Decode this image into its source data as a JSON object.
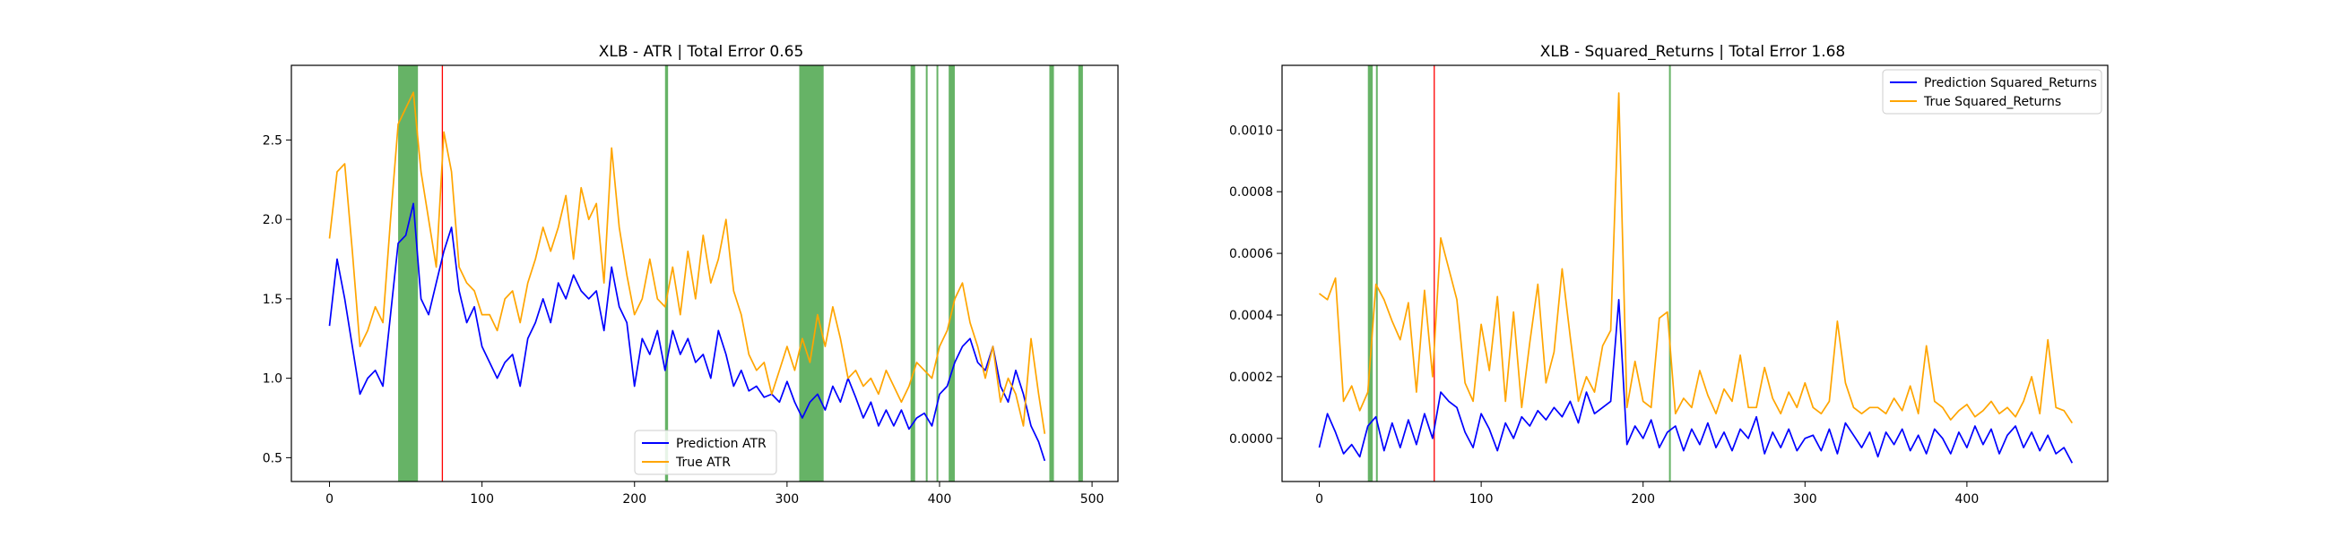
{
  "chart_data": [
    {
      "type": "line",
      "title": "XLB - ATR | Total Error 0.65",
      "xlabel": "",
      "ylabel": "",
      "xlim": [
        -25,
        517
      ],
      "ylim": [
        0.35,
        2.97
      ],
      "x_ticks": [
        0,
        100,
        200,
        300,
        400,
        500
      ],
      "y_ticks": [
        0.5,
        1.0,
        1.5,
        2.0,
        2.5
      ],
      "x_tick_labels": [
        "0",
        "100",
        "200",
        "300",
        "400",
        "500"
      ],
      "y_tick_labels": [
        "0.5",
        "1.0",
        "1.5",
        "2.0",
        "2.5"
      ],
      "legend_position": "lower-center",
      "colors": {
        "prediction": "#0000ff",
        "true": "#ffa500",
        "green_band": "#008000",
        "red_line": "#ff0000"
      },
      "series": [
        {
          "name": "Prediction ATR",
          "color": "#0000ff",
          "x": [
            0,
            5,
            10,
            15,
            20,
            25,
            30,
            35,
            40,
            45,
            50,
            55,
            60,
            65,
            70,
            75,
            80,
            85,
            90,
            95,
            100,
            105,
            110,
            115,
            120,
            125,
            130,
            135,
            140,
            145,
            150,
            155,
            160,
            165,
            170,
            175,
            180,
            185,
            190,
            195,
            200,
            205,
            210,
            215,
            220,
            225,
            230,
            235,
            240,
            245,
            250,
            255,
            260,
            265,
            270,
            275,
            280,
            285,
            290,
            295,
            300,
            305,
            310,
            315,
            320,
            325,
            330,
            335,
            340,
            345,
            350,
            355,
            360,
            365,
            370,
            375,
            380,
            385,
            390,
            395,
            400,
            405,
            410,
            415,
            420,
            425,
            430,
            435,
            440,
            445,
            450,
            455,
            460,
            465,
            469
          ],
          "values": [
            1.33,
            1.75,
            1.5,
            1.2,
            0.9,
            1.0,
            1.05,
            0.95,
            1.4,
            1.85,
            1.9,
            2.1,
            1.5,
            1.4,
            1.6,
            1.8,
            1.95,
            1.55,
            1.35,
            1.45,
            1.2,
            1.1,
            1.0,
            1.1,
            1.15,
            0.95,
            1.25,
            1.35,
            1.5,
            1.35,
            1.6,
            1.5,
            1.65,
            1.55,
            1.5,
            1.55,
            1.3,
            1.7,
            1.45,
            1.35,
            0.95,
            1.25,
            1.15,
            1.3,
            1.05,
            1.3,
            1.15,
            1.25,
            1.1,
            1.15,
            1.0,
            1.3,
            1.15,
            0.95,
            1.05,
            0.92,
            0.95,
            0.88,
            0.9,
            0.85,
            0.98,
            0.85,
            0.75,
            0.85,
            0.9,
            0.8,
            0.95,
            0.85,
            1.0,
            0.88,
            0.75,
            0.85,
            0.7,
            0.8,
            0.7,
            0.8,
            0.68,
            0.75,
            0.78,
            0.7,
            0.9,
            0.95,
            1.1,
            1.2,
            1.25,
            1.1,
            1.05,
            1.2,
            0.95,
            0.85,
            1.05,
            0.9,
            0.7,
            0.6,
            0.48
          ]
        },
        {
          "name": "True ATR",
          "color": "#ffa500",
          "x": [
            0,
            5,
            10,
            15,
            20,
            25,
            30,
            35,
            40,
            45,
            50,
            55,
            60,
            65,
            70,
            75,
            80,
            85,
            90,
            95,
            100,
            105,
            110,
            115,
            120,
            125,
            130,
            135,
            140,
            145,
            150,
            155,
            160,
            165,
            170,
            175,
            180,
            185,
            190,
            195,
            200,
            205,
            210,
            215,
            220,
            225,
            230,
            235,
            240,
            245,
            250,
            255,
            260,
            265,
            270,
            275,
            280,
            285,
            290,
            295,
            300,
            305,
            310,
            315,
            320,
            325,
            330,
            335,
            340,
            345,
            350,
            355,
            360,
            365,
            370,
            375,
            380,
            385,
            390,
            395,
            400,
            405,
            410,
            415,
            420,
            425,
            430,
            435,
            440,
            445,
            450,
            455,
            460,
            465,
            469
          ],
          "values": [
            1.88,
            2.3,
            2.35,
            1.8,
            1.2,
            1.3,
            1.45,
            1.35,
            2.0,
            2.6,
            2.7,
            2.8,
            2.3,
            2.0,
            1.7,
            2.55,
            2.3,
            1.7,
            1.6,
            1.55,
            1.4,
            1.4,
            1.3,
            1.5,
            1.55,
            1.35,
            1.6,
            1.75,
            1.95,
            1.8,
            1.95,
            2.15,
            1.75,
            2.2,
            2.0,
            2.1,
            1.6,
            2.45,
            1.95,
            1.65,
            1.4,
            1.5,
            1.75,
            1.5,
            1.45,
            1.7,
            1.4,
            1.8,
            1.5,
            1.9,
            1.6,
            1.75,
            2.0,
            1.55,
            1.4,
            1.15,
            1.05,
            1.1,
            0.9,
            1.05,
            1.2,
            1.05,
            1.25,
            1.1,
            1.4,
            1.2,
            1.45,
            1.25,
            1.0,
            1.05,
            0.95,
            1.0,
            0.9,
            1.05,
            0.95,
            0.85,
            0.95,
            1.1,
            1.05,
            1.0,
            1.2,
            1.3,
            1.5,
            1.6,
            1.35,
            1.2,
            1.0,
            1.2,
            0.85,
            1.0,
            0.9,
            0.7,
            1.25,
            0.9,
            0.65
          ]
        }
      ],
      "green_bands": [
        [
          45,
          58
        ],
        [
          220,
          222
        ],
        [
          308,
          324
        ],
        [
          381,
          384
        ],
        [
          391,
          392
        ],
        [
          398,
          399
        ],
        [
          406,
          410
        ],
        [
          472,
          475
        ],
        [
          491,
          494
        ]
      ],
      "red_lines": [
        74
      ]
    },
    {
      "type": "line",
      "title": "XLB - Squared_Returns | Total Error 1.68",
      "xlabel": "",
      "ylabel": "",
      "xlim": [
        -23,
        487
      ],
      "ylim": [
        -0.00014,
        0.00121
      ],
      "x_ticks": [
        0,
        100,
        200,
        300,
        400
      ],
      "y_ticks": [
        0.0,
        0.0002,
        0.0004,
        0.0006,
        0.0008,
        0.001
      ],
      "x_tick_labels": [
        "0",
        "100",
        "200",
        "300",
        "400"
      ],
      "y_tick_labels": [
        "0.0000",
        "0.0002",
        "0.0004",
        "0.0006",
        "0.0008",
        "0.0010"
      ],
      "legend_position": "upper-right",
      "colors": {
        "prediction": "#0000ff",
        "true": "#ffa500",
        "green_band": "#008000",
        "red_line": "#ff0000"
      },
      "series": [
        {
          "name": "Prediction Squared_Returns",
          "color": "#0000ff",
          "x": [
            0,
            5,
            10,
            15,
            20,
            25,
            30,
            35,
            40,
            45,
            50,
            55,
            60,
            65,
            70,
            75,
            80,
            85,
            90,
            95,
            100,
            105,
            110,
            115,
            120,
            125,
            130,
            135,
            140,
            145,
            150,
            155,
            160,
            165,
            170,
            175,
            180,
            185,
            190,
            195,
            200,
            205,
            210,
            215,
            220,
            225,
            230,
            235,
            240,
            245,
            250,
            255,
            260,
            265,
            270,
            275,
            280,
            285,
            290,
            295,
            300,
            305,
            310,
            315,
            320,
            325,
            330,
            335,
            340,
            345,
            350,
            355,
            360,
            365,
            370,
            375,
            380,
            385,
            390,
            395,
            400,
            405,
            410,
            415,
            420,
            425,
            430,
            435,
            440,
            445,
            450,
            455,
            460,
            465
          ],
          "values": [
            -3e-05,
            8e-05,
            2e-05,
            -5e-05,
            -2e-05,
            -6e-05,
            4e-05,
            7e-05,
            -4e-05,
            5e-05,
            -3e-05,
            6e-05,
            -2e-05,
            8e-05,
            0.0,
            0.00015,
            0.00012,
            0.0001,
            2e-05,
            -3e-05,
            8e-05,
            3e-05,
            -4e-05,
            5e-05,
            0.0,
            7e-05,
            4e-05,
            9e-05,
            6e-05,
            0.0001,
            7e-05,
            0.00012,
            5e-05,
            0.00015,
            8e-05,
            0.0001,
            0.00012,
            0.00045,
            -2e-05,
            4e-05,
            0.0,
            6e-05,
            -3e-05,
            2e-05,
            4e-05,
            -4e-05,
            3e-05,
            -2e-05,
            5e-05,
            -3e-05,
            2e-05,
            -4e-05,
            3e-05,
            0.0,
            7e-05,
            -5e-05,
            2e-05,
            -3e-05,
            3e-05,
            -4e-05,
            0.0,
            1e-05,
            -4e-05,
            3e-05,
            -5e-05,
            5e-05,
            1e-05,
            -3e-05,
            2e-05,
            -6e-05,
            2e-05,
            -2e-05,
            3e-05,
            -4e-05,
            1e-05,
            -5e-05,
            3e-05,
            0.0,
            -5e-05,
            2e-05,
            -3e-05,
            4e-05,
            -2e-05,
            3e-05,
            -5e-05,
            1e-05,
            4e-05,
            -3e-05,
            2e-05,
            -4e-05,
            1e-05,
            -5e-05,
            -3e-05,
            -8e-05
          ]
        },
        {
          "name": "True Squared_Returns",
          "color": "#ffa500",
          "x": [
            0,
            5,
            10,
            15,
            20,
            25,
            30,
            35,
            40,
            45,
            50,
            55,
            60,
            65,
            70,
            75,
            80,
            85,
            90,
            95,
            100,
            105,
            110,
            115,
            120,
            125,
            130,
            135,
            140,
            145,
            150,
            155,
            160,
            165,
            170,
            175,
            180,
            185,
            190,
            195,
            200,
            205,
            210,
            215,
            220,
            225,
            230,
            235,
            240,
            245,
            250,
            255,
            260,
            265,
            270,
            275,
            280,
            285,
            290,
            295,
            300,
            305,
            310,
            315,
            320,
            325,
            330,
            335,
            340,
            345,
            350,
            355,
            360,
            365,
            370,
            375,
            380,
            385,
            390,
            395,
            400,
            405,
            410,
            415,
            420,
            425,
            430,
            435,
            440,
            445,
            450,
            455,
            460,
            465
          ],
          "values": [
            0.00047,
            0.00045,
            0.00052,
            0.00012,
            0.00017,
            9e-05,
            0.00015,
            0.0005,
            0.00045,
            0.00038,
            0.00032,
            0.00044,
            0.00015,
            0.00048,
            0.0002,
            0.00065,
            0.00055,
            0.00045,
            0.00018,
            0.00012,
            0.00037,
            0.00022,
            0.00046,
            0.00012,
            0.00041,
            0.0001,
            0.00031,
            0.0005,
            0.00018,
            0.00028,
            0.00055,
            0.00033,
            0.00012,
            0.0002,
            0.00015,
            0.0003,
            0.00035,
            0.00112,
            0.0001,
            0.00025,
            0.00012,
            0.0001,
            0.00039,
            0.00041,
            8e-05,
            0.00013,
            0.0001,
            0.00022,
            0.00014,
            8e-05,
            0.00016,
            0.00012,
            0.00027,
            0.0001,
            0.0001,
            0.00023,
            0.00013,
            8e-05,
            0.00015,
            0.0001,
            0.00018,
            0.0001,
            8e-05,
            0.00012,
            0.00038,
            0.00018,
            0.0001,
            8e-05,
            0.0001,
            0.0001,
            8e-05,
            0.00013,
            9e-05,
            0.00017,
            8e-05,
            0.0003,
            0.00012,
            0.0001,
            6e-05,
            9e-05,
            0.00011,
            7e-05,
            9e-05,
            0.00012,
            8e-05,
            0.0001,
            7e-05,
            0.00012,
            0.0002,
            8e-05,
            0.00032,
            0.0001,
            9e-05,
            5e-05
          ]
        }
      ],
      "green_bands": [
        [
          30,
          33
        ],
        [
          35,
          36
        ],
        [
          216,
          217
        ]
      ],
      "red_lines": [
        71
      ]
    }
  ]
}
